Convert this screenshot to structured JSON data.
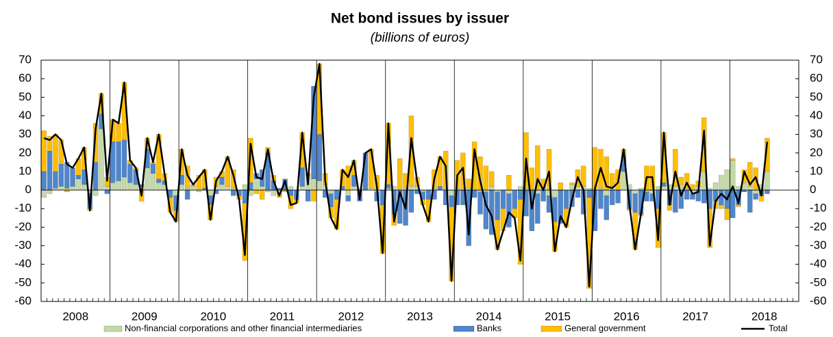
{
  "chart_data": {
    "type": "bar",
    "stacked": true,
    "title": "Net bond issues by issuer",
    "subtitle": "(billions of euros)",
    "year_labels": [
      "2008",
      "2009",
      "2010",
      "2011",
      "2012",
      "2013",
      "2014",
      "2015",
      "2016",
      "2017",
      "2018"
    ],
    "ylim": [
      -60,
      70
    ],
    "yticks": [
      -60,
      -50,
      -40,
      -30,
      -20,
      -10,
      0,
      10,
      20,
      30,
      40,
      50,
      60,
      70
    ],
    "y2lim": [
      -60,
      70
    ],
    "y2ticks": [
      -60,
      -50,
      -40,
      -30,
      -20,
      -10,
      0,
      10,
      20,
      30,
      40,
      50,
      60,
      70
    ],
    "series": [
      {
        "name": "Non-financial corporations and other financial intermediaries",
        "color": "#c4d9a6",
        "values": [
          -4,
          -2,
          1,
          2,
          1,
          2,
          6,
          3,
          -2,
          -3,
          33,
          2,
          4,
          5,
          7,
          4,
          3,
          2,
          12,
          9,
          4,
          3,
          0,
          -3,
          3,
          1,
          2,
          -1,
          0,
          -3,
          2,
          3,
          2,
          1,
          0,
          3,
          -3,
          6,
          2,
          -1,
          -3,
          -2,
          0,
          2,
          0,
          2,
          8,
          6,
          5,
          3,
          -2,
          0,
          0,
          -3,
          2,
          1,
          0,
          1,
          -1,
          0,
          1,
          2,
          0,
          1,
          2,
          2,
          -1,
          0,
          1,
          0,
          1,
          -3,
          1,
          0,
          1,
          0,
          -1,
          -1,
          2,
          -1,
          0,
          -2,
          0,
          2,
          1,
          0,
          -2,
          1,
          -3,
          -4,
          0,
          0,
          3,
          2,
          2,
          1,
          0,
          1,
          -3,
          2,
          0,
          10,
          3,
          -2,
          1,
          -1,
          -2,
          2,
          2,
          3,
          2,
          3,
          1,
          -2,
          2,
          10,
          1,
          4,
          8,
          11,
          16,
          2,
          4,
          2,
          -2,
          3,
          10
        ]
      },
      {
        "name": "Banks",
        "color": "#4f86cc",
        "values": [
          10,
          21,
          9,
          12,
          14,
          10,
          2,
          8,
          -8,
          15,
          8,
          -2,
          22,
          21,
          20,
          10,
          8,
          1,
          10,
          5,
          2,
          2,
          -4,
          -8,
          5,
          -5,
          0,
          0,
          1,
          -5,
          -2,
          4,
          0,
          -3,
          -3,
          -7,
          4,
          3,
          9,
          20,
          5,
          1,
          6,
          -3,
          -5,
          10,
          -6,
          50,
          25,
          -4,
          -7,
          -5,
          2,
          -3,
          6,
          -6,
          20,
          0,
          -5,
          -8,
          2,
          -13,
          -18,
          -19,
          -12,
          -2,
          -4,
          -5,
          -5,
          2,
          -8,
          -6,
          -8,
          -8,
          -30,
          -4,
          -12,
          -20,
          -24,
          -15,
          -10,
          -18,
          -10,
          -5,
          -14,
          -22,
          -16,
          -6,
          -9,
          -13,
          -18,
          -10,
          -9,
          -4,
          -13,
          -4,
          -22,
          -10,
          -13,
          -8,
          -7,
          8,
          -10,
          -10,
          -13,
          -5,
          -4,
          -10,
          2,
          -8,
          -12,
          -10,
          -5,
          -3,
          -6,
          -7,
          -10,
          -6,
          -8,
          -10,
          -15,
          -8,
          -1,
          -12,
          -3,
          -3,
          -2
        ]
      },
      {
        "name": "General government",
        "color": "#ffbf00",
        "values": [
          22,
          8,
          20,
          13,
          -1,
          0,
          9,
          12,
          -1,
          21,
          11,
          5,
          12,
          10,
          31,
          2,
          1,
          -6,
          6,
          1,
          24,
          4,
          -8,
          -6,
          14,
          12,
          1,
          8,
          10,
          -8,
          5,
          3,
          16,
          10,
          -2,
          -31,
          24,
          -2,
          -5,
          3,
          3,
          -2,
          -1,
          -7,
          -2,
          19,
          1,
          -6,
          38,
          6,
          -6,
          -16,
          9,
          13,
          8,
          0,
          0,
          21,
          8,
          -26,
          33,
          -6,
          17,
          8,
          38,
          5,
          -3,
          -12,
          10,
          16,
          20,
          -40,
          15,
          20,
          5,
          26,
          18,
          13,
          8,
          -16,
          -12,
          8,
          -5,
          -35,
          30,
          12,
          24,
          5,
          22,
          -16,
          4,
          -10,
          1,
          9,
          11,
          -49,
          23,
          21,
          18,
          7,
          11,
          4,
          -1,
          -20,
          -1,
          13,
          13,
          -21,
          27,
          -3,
          20,
          4,
          8,
          3,
          3,
          29,
          -21,
          -4,
          -2,
          -6,
          1,
          -1,
          7,
          13,
          12,
          -3,
          18
        ]
      },
      {
        "name": "Total",
        "type": "line",
        "color": "#000000",
        "values": [
          28,
          27,
          30,
          27,
          14,
          12,
          17,
          23,
          -11,
          33,
          52,
          5,
          38,
          36,
          58,
          16,
          12,
          -3,
          28,
          15,
          30,
          9,
          -12,
          -17,
          22,
          8,
          3,
          7,
          11,
          -16,
          5,
          10,
          18,
          8,
          -5,
          -35,
          25,
          7,
          6,
          22,
          5,
          -3,
          5,
          -8,
          -7,
          31,
          3,
          50,
          68,
          5,
          -15,
          -21,
          11,
          7,
          16,
          -5,
          20,
          22,
          2,
          -34,
          36,
          -17,
          -1,
          -10,
          28,
          5,
          -8,
          -17,
          6,
          18,
          13,
          -49,
          8,
          12,
          -24,
          22,
          5,
          -8,
          -14,
          -32,
          -22,
          -12,
          -15,
          -38,
          17,
          -10,
          6,
          0,
          10,
          -33,
          -14,
          -20,
          -5,
          7,
          0,
          -52,
          1,
          12,
          2,
          1,
          4,
          22,
          -8,
          -32,
          -13,
          7,
          7,
          -27,
          31,
          -8,
          10,
          -3,
          4,
          -2,
          -1,
          32,
          -30,
          -6,
          -2,
          -5,
          2,
          -7,
          10,
          3,
          7,
          -3,
          26
        ]
      }
    ]
  }
}
